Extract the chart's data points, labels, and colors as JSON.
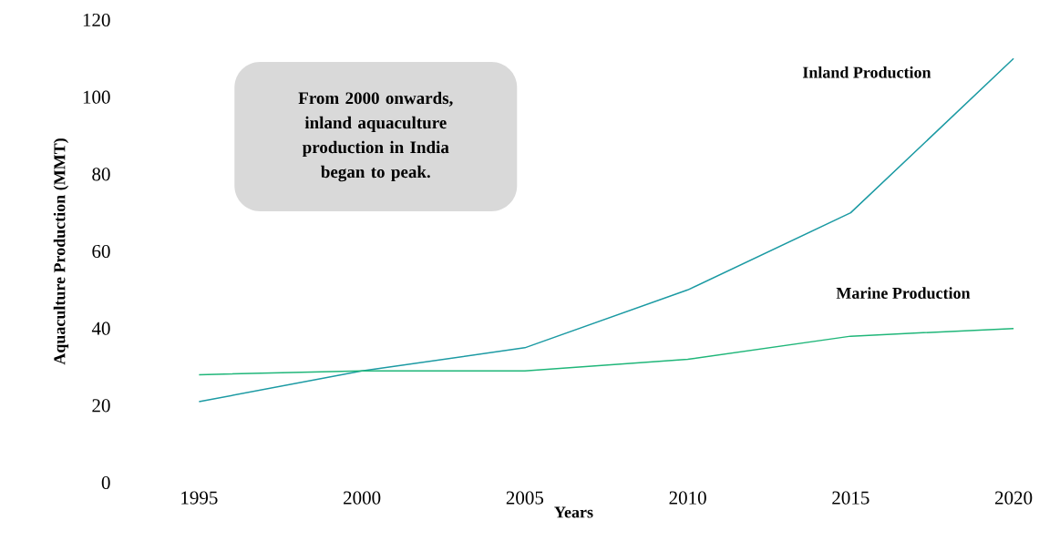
{
  "chart_data": {
    "type": "line",
    "xlabel": "Years",
    "ylabel": "Aquaculture Production (MMT)",
    "categories": [
      "1995",
      "2000",
      "2005",
      "2010",
      "2015",
      "2020"
    ],
    "series": [
      {
        "name": "Inland Production",
        "color": "#1b9aa3",
        "values": [
          21,
          29,
          35,
          50,
          70,
          110
        ]
      },
      {
        "name": "Marine Production",
        "color": "#1fb679",
        "values": [
          28,
          29,
          29,
          32,
          38,
          40
        ]
      }
    ],
    "ylim": [
      0,
      120
    ],
    "yticks": [
      0,
      20,
      40,
      60,
      80,
      100,
      120
    ],
    "annotations": [
      "From 2000 onwards, inland aquaculture production in India began to peak."
    ]
  }
}
